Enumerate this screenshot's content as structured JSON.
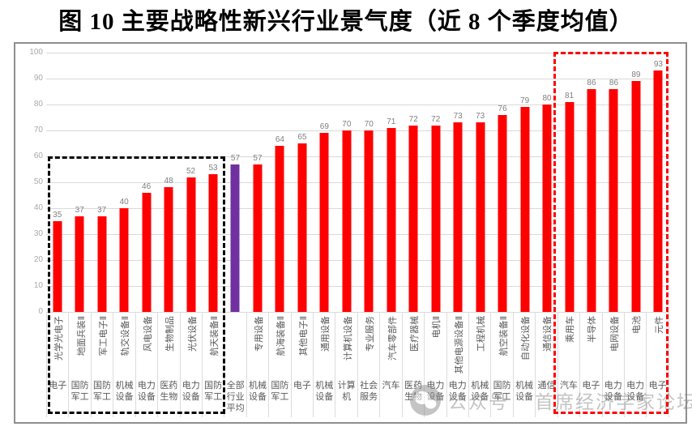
{
  "page": {
    "title": "图 10 主要战略性新兴行业景气度（近 8 个季度均值）"
  },
  "watermark": {
    "logo": "wechat-icon",
    "prefix": "公众号",
    "name": "首席经济学家论坛"
  },
  "chart_data": {
    "type": "bar",
    "title": "图 10 主要战略性新兴行业景气度（近 8 个季度均值）",
    "xlabel": "",
    "ylabel": "",
    "ylim": [
      0,
      100
    ],
    "yticks": [
      0,
      10,
      20,
      30,
      40,
      50,
      60,
      70,
      80,
      90,
      100
    ],
    "grid": true,
    "legend": "none",
    "colors": {
      "bar": "#ff0000",
      "average_bar": "#7030a0",
      "grid": "#d9d9d9",
      "value_label": "#7f7f7f",
      "axis_tick_label": "#a9a9a9",
      "category_label": "#595959"
    },
    "annotations": [
      {
        "name": "black-dashed-box",
        "style": "dashed",
        "color": "#000000",
        "covers_from": "光学光电子",
        "covers_to": "航天装备Ⅱ"
      },
      {
        "name": "red-dashed-box",
        "style": "dashed",
        "color": "#ff0000",
        "covers_from": "乘用车",
        "covers_to": "元件"
      }
    ],
    "bars": [
      {
        "industry": "光学光电子",
        "sector": "电子",
        "value": 35,
        "group": "black-box"
      },
      {
        "industry": "地面兵装Ⅱ",
        "sector": "国防军工",
        "value": 37,
        "group": "black-box"
      },
      {
        "industry": "军工电子Ⅱ",
        "sector": "国防军工",
        "value": 37,
        "group": "black-box"
      },
      {
        "industry": "轨交设备Ⅱ",
        "sector": "机械设备",
        "value": 40,
        "group": "black-box"
      },
      {
        "industry": "风电设备",
        "sector": "电力设备",
        "value": 46,
        "group": "black-box"
      },
      {
        "industry": "生物制品",
        "sector": "医药生物",
        "value": 48,
        "group": "black-box"
      },
      {
        "industry": "光伏设备",
        "sector": "电力设备",
        "value": 52,
        "group": "black-box"
      },
      {
        "industry": "航天装备Ⅱ",
        "sector": "国防军工",
        "value": 53,
        "group": "black-box"
      },
      {
        "industry": "",
        "sector": "全部行业平均",
        "value": 57,
        "color": "average"
      },
      {
        "industry": "专用设备",
        "sector": "机械设备",
        "value": 57
      },
      {
        "industry": "航海装备Ⅱ",
        "sector": "国防军工",
        "value": 64
      },
      {
        "industry": "其他电子Ⅱ",
        "sector": "电子",
        "value": 65
      },
      {
        "industry": "通用设备",
        "sector": "机械设备",
        "value": 69
      },
      {
        "industry": "计算机设备",
        "sector": "计算机",
        "value": 70
      },
      {
        "industry": "专业服务",
        "sector": "社会服务",
        "value": 70
      },
      {
        "industry": "汽车零部件",
        "sector": "汽车",
        "value": 71
      },
      {
        "industry": "医疗器械",
        "sector": "医药生物",
        "value": 72
      },
      {
        "industry": "电机Ⅱ",
        "sector": "电力设备",
        "value": 72
      },
      {
        "industry": "其他电源设备Ⅱ",
        "sector": "电力设备",
        "value": 73
      },
      {
        "industry": "工程机械",
        "sector": "机械设备",
        "value": 73
      },
      {
        "industry": "航空装备Ⅱ",
        "sector": "国防军工",
        "value": 76
      },
      {
        "industry": "自动化设备",
        "sector": "机械设备",
        "value": 79
      },
      {
        "industry": "通信设备",
        "sector": "通信",
        "value": 80
      },
      {
        "industry": "乘用车",
        "sector": "汽车",
        "value": 81,
        "group": "red-box"
      },
      {
        "industry": "半导体",
        "sector": "电子",
        "value": 86,
        "group": "red-box"
      },
      {
        "industry": "电网设备",
        "sector": "电力设备",
        "value": 86,
        "group": "red-box"
      },
      {
        "industry": "电池",
        "sector": "电力设备",
        "value": 89,
        "group": "red-box"
      },
      {
        "industry": "元件",
        "sector": "电子",
        "value": 93,
        "group": "red-box"
      }
    ]
  }
}
